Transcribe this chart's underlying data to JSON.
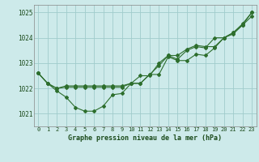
{
  "title": "Graphe pression niveau de la mer (hPa)",
  "background_color": "#cdeaea",
  "grid_color": "#a0cccc",
  "line_color": "#2d6e2d",
  "xlim": [
    -0.5,
    23.5
  ],
  "ylim": [
    1020.5,
    1025.3
  ],
  "yticks": [
    1021,
    1022,
    1023,
    1024,
    1025
  ],
  "xticks": [
    0,
    1,
    2,
    3,
    4,
    5,
    6,
    7,
    8,
    9,
    10,
    11,
    12,
    13,
    14,
    15,
    16,
    17,
    18,
    19,
    20,
    21,
    22,
    23
  ],
  "series": [
    [
      1022.6,
      1022.2,
      1021.9,
      1021.65,
      1021.25,
      1021.1,
      1021.1,
      1021.3,
      1021.75,
      1021.8,
      1022.2,
      1022.2,
      1022.55,
      1022.55,
      1023.25,
      1023.1,
      1023.1,
      1023.35,
      1023.3,
      1023.6,
      1024.0,
      1024.2,
      1024.5,
      1025.0
    ],
    [
      1022.6,
      1022.2,
      1022.0,
      1022.1,
      1022.1,
      1022.1,
      1022.1,
      1022.1,
      1022.1,
      1022.1,
      1022.2,
      1022.5,
      1022.5,
      1023.0,
      1023.3,
      1023.15,
      1023.5,
      1023.65,
      1023.6,
      1024.0,
      1024.0,
      1024.2,
      1024.55,
      1025.0
    ],
    [
      1022.6,
      1022.2,
      1022.0,
      1022.05,
      1022.05,
      1022.05,
      1022.05,
      1022.05,
      1022.05,
      1022.05,
      1022.2,
      1022.2,
      1022.55,
      1022.9,
      1023.3,
      1023.3,
      1023.55,
      1023.7,
      1023.65,
      1023.65,
      1024.0,
      1024.15,
      1024.5,
      1024.85
    ]
  ]
}
